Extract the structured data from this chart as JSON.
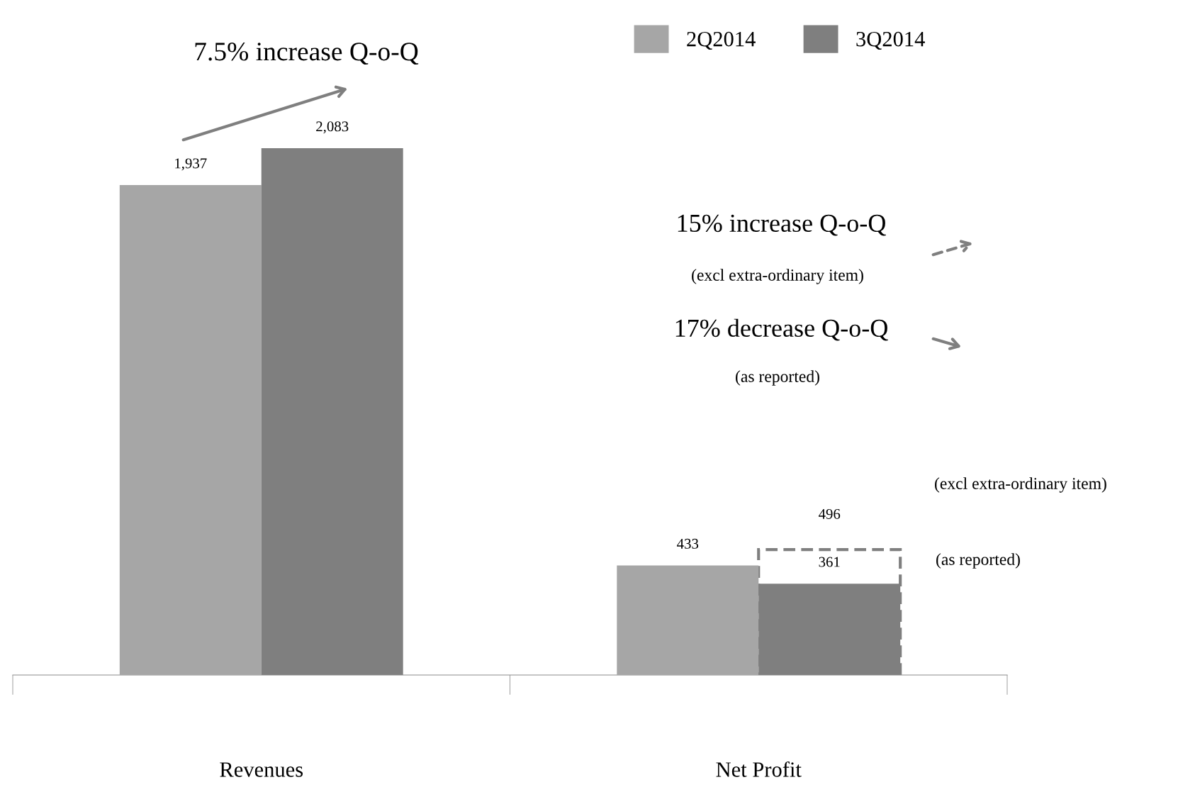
{
  "chart_data": {
    "type": "bar",
    "categories": [
      "Revenues",
      "Net Profit"
    ],
    "series": [
      {
        "name": "2Q2014",
        "color": "#a6a6a6",
        "values": [
          1937,
          433
        ],
        "value_labels": [
          "1,937",
          "433"
        ]
      },
      {
        "name": "3Q2014",
        "color": "#7f7f7f",
        "values": [
          2083,
          361
        ],
        "value_labels": [
          "2,083",
          "361"
        ]
      },
      {
        "color": "#7f7f7f",
        "line_style": "dashed",
        "values": [
          null,
          496
        ],
        "value_labels": [
          null,
          "496"
        ]
      }
    ],
    "legend": "top",
    "grid": false,
    "annotations": [
      "7.5% increase Q-o-Q",
      "15% increase Q-o-Q",
      "(excl extra-ordinary item)",
      "17% decrease Q-o-Q",
      "(as reported)",
      "(excl extra-ordinary item)",
      "(as reported)"
    ]
  }
}
